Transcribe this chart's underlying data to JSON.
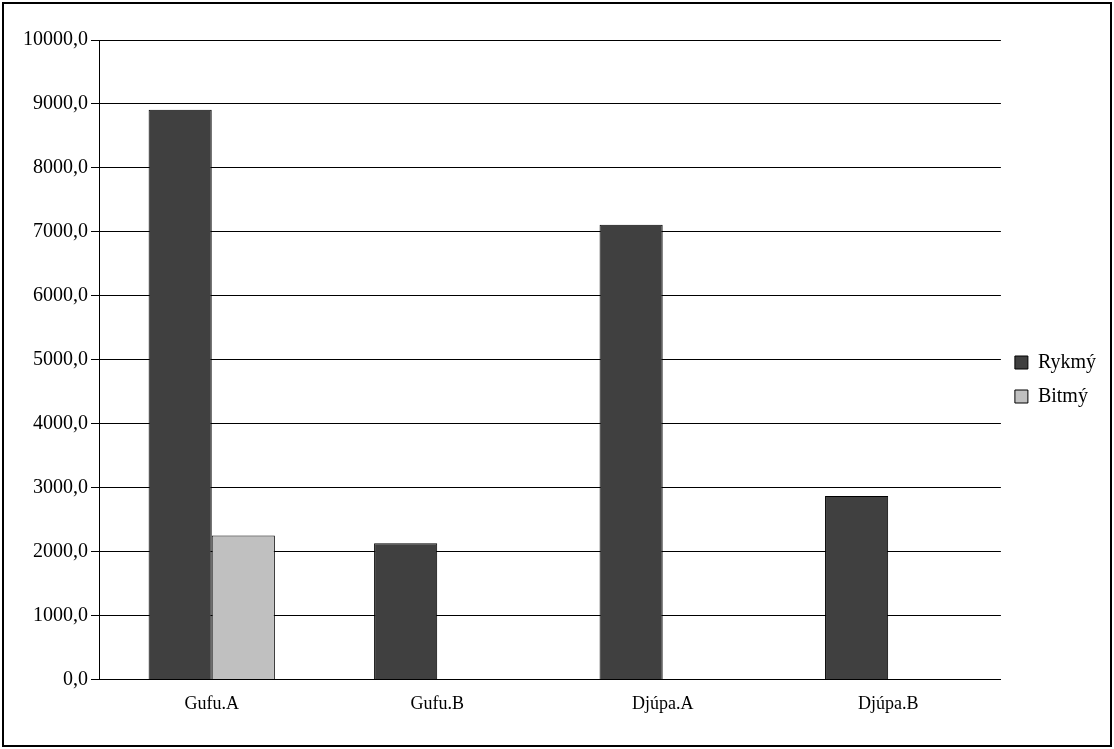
{
  "chart_data": {
    "type": "bar",
    "categories": [
      "Gufu.A",
      "Gufu.B",
      "Djúpa.A",
      "Djúpa.B"
    ],
    "series": [
      {
        "name": "Rykmý",
        "color": "#404040",
        "values": [
          8910,
          2130,
          7110,
          2870
        ]
      },
      {
        "name": "Bitmý",
        "color": "#c0c0c0",
        "values": [
          2250,
          null,
          null,
          null
        ]
      }
    ],
    "ylim": [
      0,
      10000
    ],
    "yticks": [
      {
        "value": 0,
        "label": "0,0"
      },
      {
        "value": 1000,
        "label": "1000,0"
      },
      {
        "value": 2000,
        "label": "2000,0"
      },
      {
        "value": 3000,
        "label": "3000,0"
      },
      {
        "value": 4000,
        "label": "4000,0"
      },
      {
        "value": 5000,
        "label": "5000,0"
      },
      {
        "value": 6000,
        "label": "6000,0"
      },
      {
        "value": 7000,
        "label": "7000,0"
      },
      {
        "value": 8000,
        "label": "8000,0"
      },
      {
        "value": 9000,
        "label": "9000,0"
      },
      {
        "value": 10000,
        "label": "10000,0"
      }
    ],
    "grid": "y",
    "legend": "right"
  }
}
